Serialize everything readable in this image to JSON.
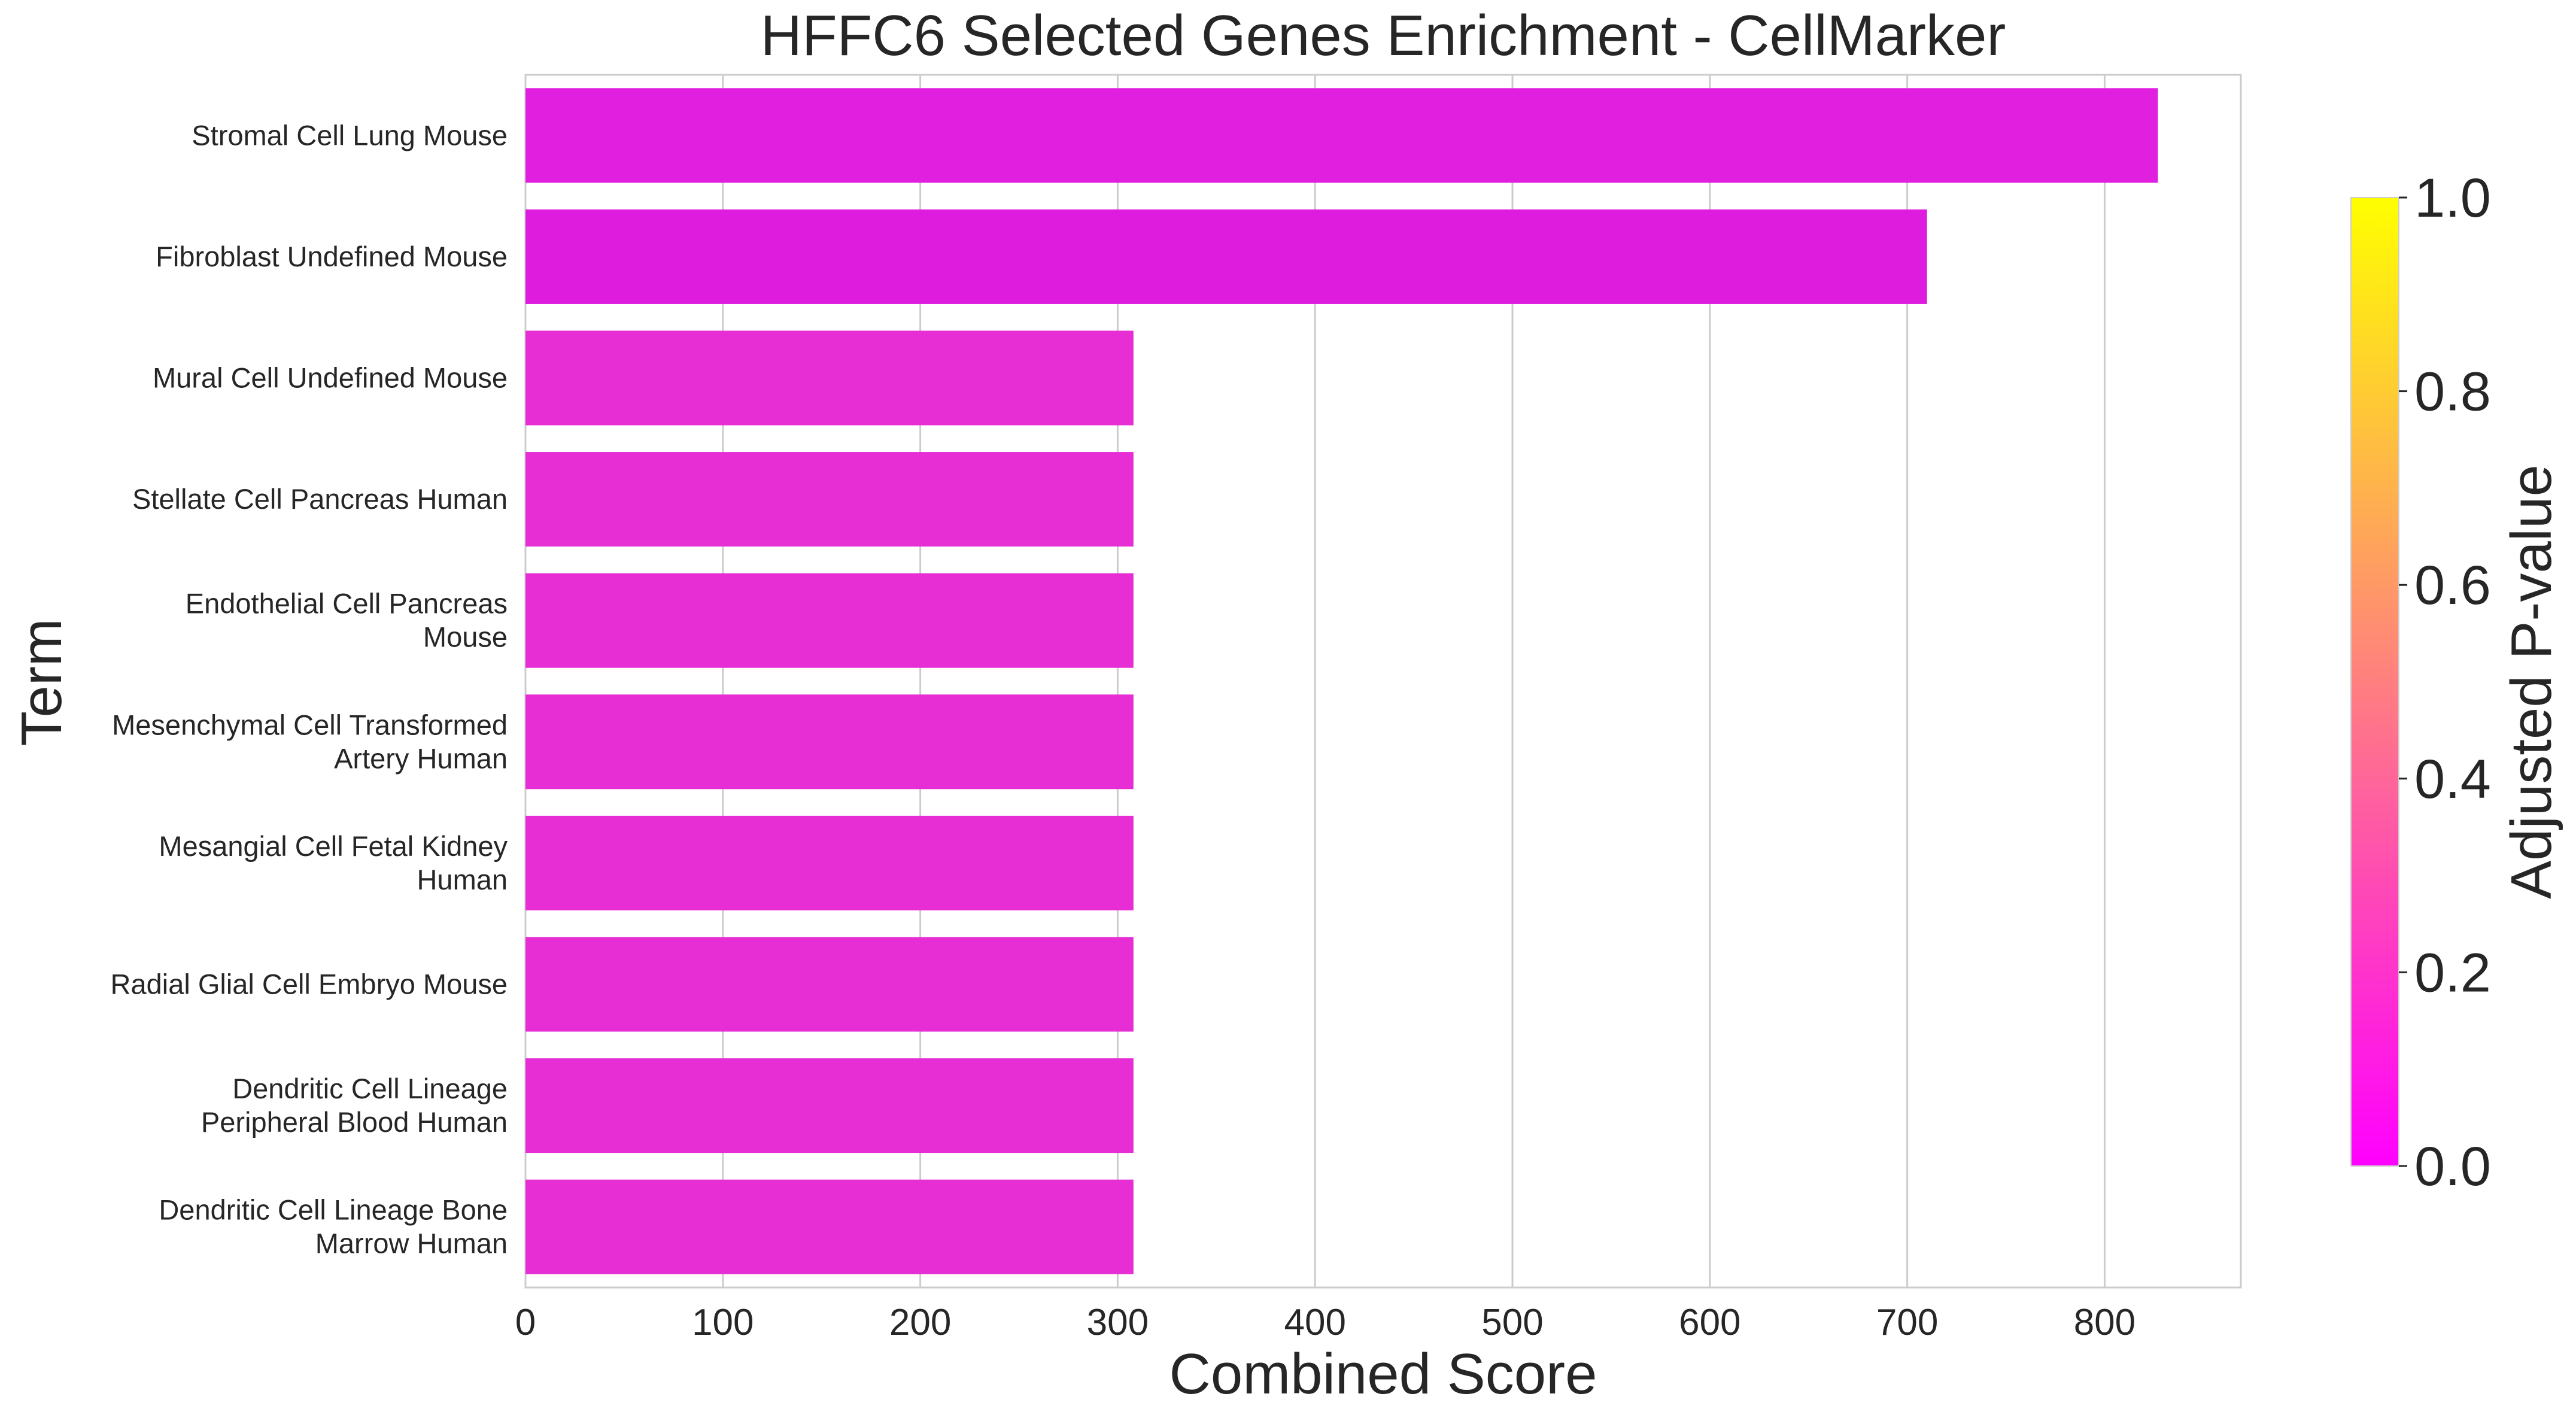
{
  "chart_data": {
    "type": "bar",
    "orientation": "horizontal",
    "title": "HFFC6 Selected Genes Enrichment - CellMarker",
    "xlabel": "Combined Score",
    "ylabel": "Term",
    "xlim": [
      0,
      869
    ],
    "xticks": [
      0,
      100,
      200,
      300,
      400,
      500,
      600,
      700,
      800
    ],
    "grid": "vertical",
    "categories": [
      [
        "Stromal Cell Lung Mouse"
      ],
      [
        "Fibroblast Undefined Mouse"
      ],
      [
        "Mural Cell Undefined Mouse"
      ],
      [
        "Stellate Cell Pancreas Human"
      ],
      [
        "Endothelial Cell Pancreas",
        "Mouse"
      ],
      [
        "Mesenchymal Cell Transformed",
        "Artery Human"
      ],
      [
        "Mesangial Cell Fetal Kidney",
        "Human"
      ],
      [
        "Radial Glial Cell Embryo Mouse"
      ],
      [
        "Dendritic Cell Lineage",
        "Peripheral Blood Human"
      ],
      [
        "Dendritic Cell Lineage Bone",
        "Marrow Human"
      ]
    ],
    "values": [
      827,
      710,
      308,
      308,
      308,
      308,
      308,
      308,
      308,
      308
    ],
    "adjusted_p_values": [
      0.1,
      0.06,
      0.18,
      0.18,
      0.18,
      0.18,
      0.18,
      0.18,
      0.18,
      0.18
    ],
    "bar_colors": [
      "#e11fdf",
      "#de1cdd",
      "#e62ed4",
      "#e62ed4",
      "#e62ed4",
      "#e62ed4",
      "#e62ed4",
      "#e62ed4",
      "#e62ed4",
      "#e62ed4"
    ],
    "colorbar": {
      "label": "Adjusted P-value",
      "min": 0.0,
      "max": 1.0,
      "ticks": [
        "0.0",
        "0.2",
        "0.4",
        "0.6",
        "0.8",
        "1.0"
      ],
      "colormap": "spring",
      "color_low": "#ff00ff",
      "color_high": "#ffff00"
    }
  }
}
